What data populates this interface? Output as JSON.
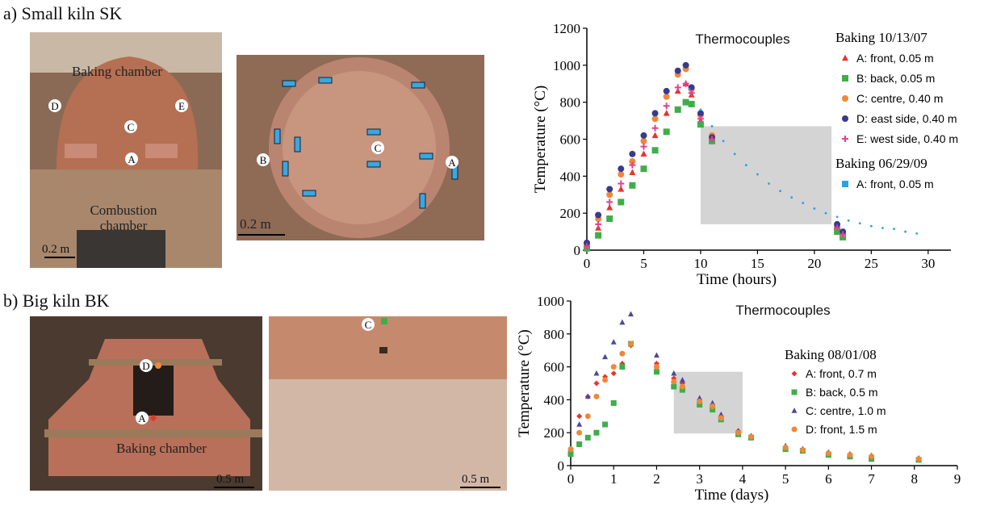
{
  "panels": [
    {
      "label": "a) Small kiln SK",
      "photos": [
        {
          "labels": [
            "Baking chamber",
            "D",
            "E",
            "C",
            "A",
            "Combustion",
            "chamber"
          ],
          "scale": "0.2 m"
        },
        {
          "labels": [
            "B",
            "C",
            "A"
          ],
          "scale": "0.2 m"
        }
      ]
    },
    {
      "label": "b) Big kiln BK",
      "photos": [
        {
          "labels": [
            "D",
            "A",
            "Baking chamber"
          ],
          "scale": "0.5 m"
        },
        {
          "labels": [
            "C"
          ],
          "scale": "0.5 m"
        }
      ]
    }
  ],
  "chart_data": [
    {
      "type": "scatter",
      "title": "Thermocouples",
      "x_label": "Time (hours)",
      "y_label": "Temperature (°C)",
      "xlim": [
        0,
        32
      ],
      "xticks": [
        0,
        5,
        10,
        15,
        20,
        25,
        30
      ],
      "ylim": [
        0,
        1200
      ],
      "yticks": [
        0,
        200,
        400,
        600,
        800,
        1000,
        1200
      ],
      "legend": "upper right",
      "highlight": {
        "x": [
          10,
          21.5
        ],
        "y": [
          140,
          670
        ],
        "color": "#d4d4d4"
      },
      "groups": [
        {
          "title": "Baking 10/13/07",
          "series": [
            {
              "name": "A: front, 0.05 m",
              "color": "#e8352b",
              "marker": "triangle",
              "x": [
                0,
                1,
                2,
                3,
                4,
                5,
                6,
                7,
                8,
                8.7,
                9.2,
                10,
                11,
                22,
                22.5
              ],
              "values": [
                20,
                120,
                230,
                330,
                420,
                520,
                620,
                740,
                860,
                900,
                840,
                700,
                600,
                110,
                80
              ]
            },
            {
              "name": "B: back, 0.05 m",
              "color": "#3fae49",
              "marker": "square",
              "x": [
                0,
                1,
                2,
                3,
                4,
                5,
                6,
                7,
                8,
                8.7,
                9.2,
                10,
                11,
                22,
                22.5
              ],
              "values": [
                10,
                80,
                170,
                260,
                350,
                440,
                540,
                640,
                760,
                800,
                790,
                680,
                590,
                100,
                70
              ]
            },
            {
              "name": "C: centre, 0.40 m",
              "color": "#f0873a",
              "marker": "circle",
              "x": [
                0,
                1,
                2,
                3,
                4,
                5,
                6,
                7,
                8,
                8.7,
                9.2,
                10,
                11,
                22,
                22.5
              ],
              "values": [
                30,
                170,
                300,
                410,
                480,
                590,
                710,
                830,
                950,
                980,
                870,
                730,
                620,
                130,
                90
              ]
            },
            {
              "name": "D: east side, 0.40 m",
              "color": "#3a3a8c",
              "marker": "circle",
              "x": [
                0,
                1,
                2,
                3,
                4,
                5,
                6,
                7,
                8,
                8.7,
                9.2,
                10,
                11,
                22,
                22.5
              ],
              "values": [
                40,
                190,
                330,
                440,
                520,
                620,
                740,
                860,
                970,
                1000,
                880,
                740,
                610,
                140,
                100
              ]
            },
            {
              "name": "E: west side, 0.40 m",
              "color": "#e0409a",
              "marker": "plus",
              "x": [
                0,
                1,
                2,
                3,
                4,
                5,
                6,
                7,
                8,
                8.7,
                9.2,
                10,
                11,
                22,
                22.5
              ],
              "values": [
                20,
                140,
                260,
                360,
                460,
                560,
                660,
                780,
                880,
                900,
                850,
                710,
                600,
                120,
                85
              ]
            }
          ]
        },
        {
          "title": "Baking 06/29/09",
          "series": [
            {
              "name": "A: front, 0.05 m",
              "color": "#2aa3dc",
              "marker": "dot",
              "x": [
                9,
                10,
                11,
                12,
                13,
                14,
                15,
                16,
                17,
                18,
                19,
                20,
                21,
                22,
                23,
                24,
                25,
                26,
                27,
                28,
                29
              ],
              "values": [
                870,
                760,
                670,
                590,
                520,
                460,
                410,
                360,
                320,
                285,
                255,
                225,
                200,
                180,
                160,
                145,
                130,
                120,
                115,
                100,
                90
              ]
            }
          ]
        }
      ]
    },
    {
      "type": "scatter",
      "title": "Thermocouples",
      "x_label": "Time (days)",
      "y_label": "Temperature (°C)",
      "xlim": [
        0,
        9
      ],
      "xticks": [
        0,
        1,
        2,
        3,
        4,
        5,
        6,
        7,
        8,
        9
      ],
      "ylim": [
        0,
        1000
      ],
      "yticks": [
        0,
        200,
        400,
        600,
        800,
        1000
      ],
      "legend": "upper right",
      "highlight": {
        "x": [
          2.4,
          4
        ],
        "y": [
          195,
          570
        ],
        "color": "#d4d4d4"
      },
      "groups": [
        {
          "title": "Baking 08/01/08",
          "series": [
            {
              "name": "A: front, 0.7 m",
              "color": "#e8352b",
              "marker": "diamond",
              "x": [
                0,
                0.2,
                0.4,
                0.6,
                0.8,
                1,
                1.2,
                1.4,
                2,
                2.4,
                2.6,
                3,
                3.3,
                3.5,
                3.9,
                4.2,
                5,
                5.4,
                6,
                6.5,
                7,
                8.1
              ],
              "values": [
                100,
                300,
                420,
                500,
                540,
                560,
                620,
                730,
                620,
                530,
                500,
                400,
                370,
                300,
                210,
                180,
                110,
                100,
                80,
                70,
                60,
                45
              ]
            },
            {
              "name": "B: back, 0.5 m",
              "color": "#3fae49",
              "marker": "square",
              "x": [
                0,
                0.2,
                0.4,
                0.6,
                0.8,
                1,
                1.2,
                1.4,
                2,
                2.4,
                2.6,
                3,
                3.3,
                3.5,
                3.9,
                4.2,
                5,
                5.4,
                6,
                6.5,
                7,
                8.1
              ],
              "values": [
                70,
                130,
                170,
                200,
                250,
                380,
                600,
                740,
                570,
                480,
                460,
                370,
                340,
                280,
                190,
                170,
                100,
                90,
                65,
                55,
                40,
                35
              ]
            },
            {
              "name": "C: centre, 1.0 m",
              "color": "#4a4a9c",
              "marker": "triangle",
              "x": [
                0,
                0.2,
                0.4,
                0.6,
                0.8,
                1,
                1.2,
                1.4,
                2,
                2.4,
                2.6,
                3,
                3.3,
                3.5,
                3.9,
                4.2,
                5,
                5.4,
                6,
                6.5,
                7,
                8.1
              ],
              "values": [
                100,
                250,
                420,
                560,
                660,
                750,
                870,
                920,
                670,
                560,
                520,
                410,
                380,
                310,
                210,
                180,
                120,
                100,
                80,
                70,
                60,
                45
              ]
            },
            {
              "name": "D: front, 1.5 m",
              "color": "#f0873a",
              "marker": "circle",
              "x": [
                0,
                0.2,
                0.4,
                0.6,
                0.8,
                1,
                1.2,
                1.4,
                2,
                2.4,
                2.6,
                3,
                3.3,
                3.5,
                3.9,
                4.2,
                5,
                5.4,
                6,
                6.5,
                7,
                8.1
              ],
              "values": [
                100,
                200,
                300,
                420,
                520,
                600,
                680,
                740,
                600,
                510,
                480,
                390,
                360,
                290,
                200,
                175,
                110,
                95,
                75,
                65,
                55,
                40
              ]
            }
          ]
        }
      ]
    }
  ]
}
